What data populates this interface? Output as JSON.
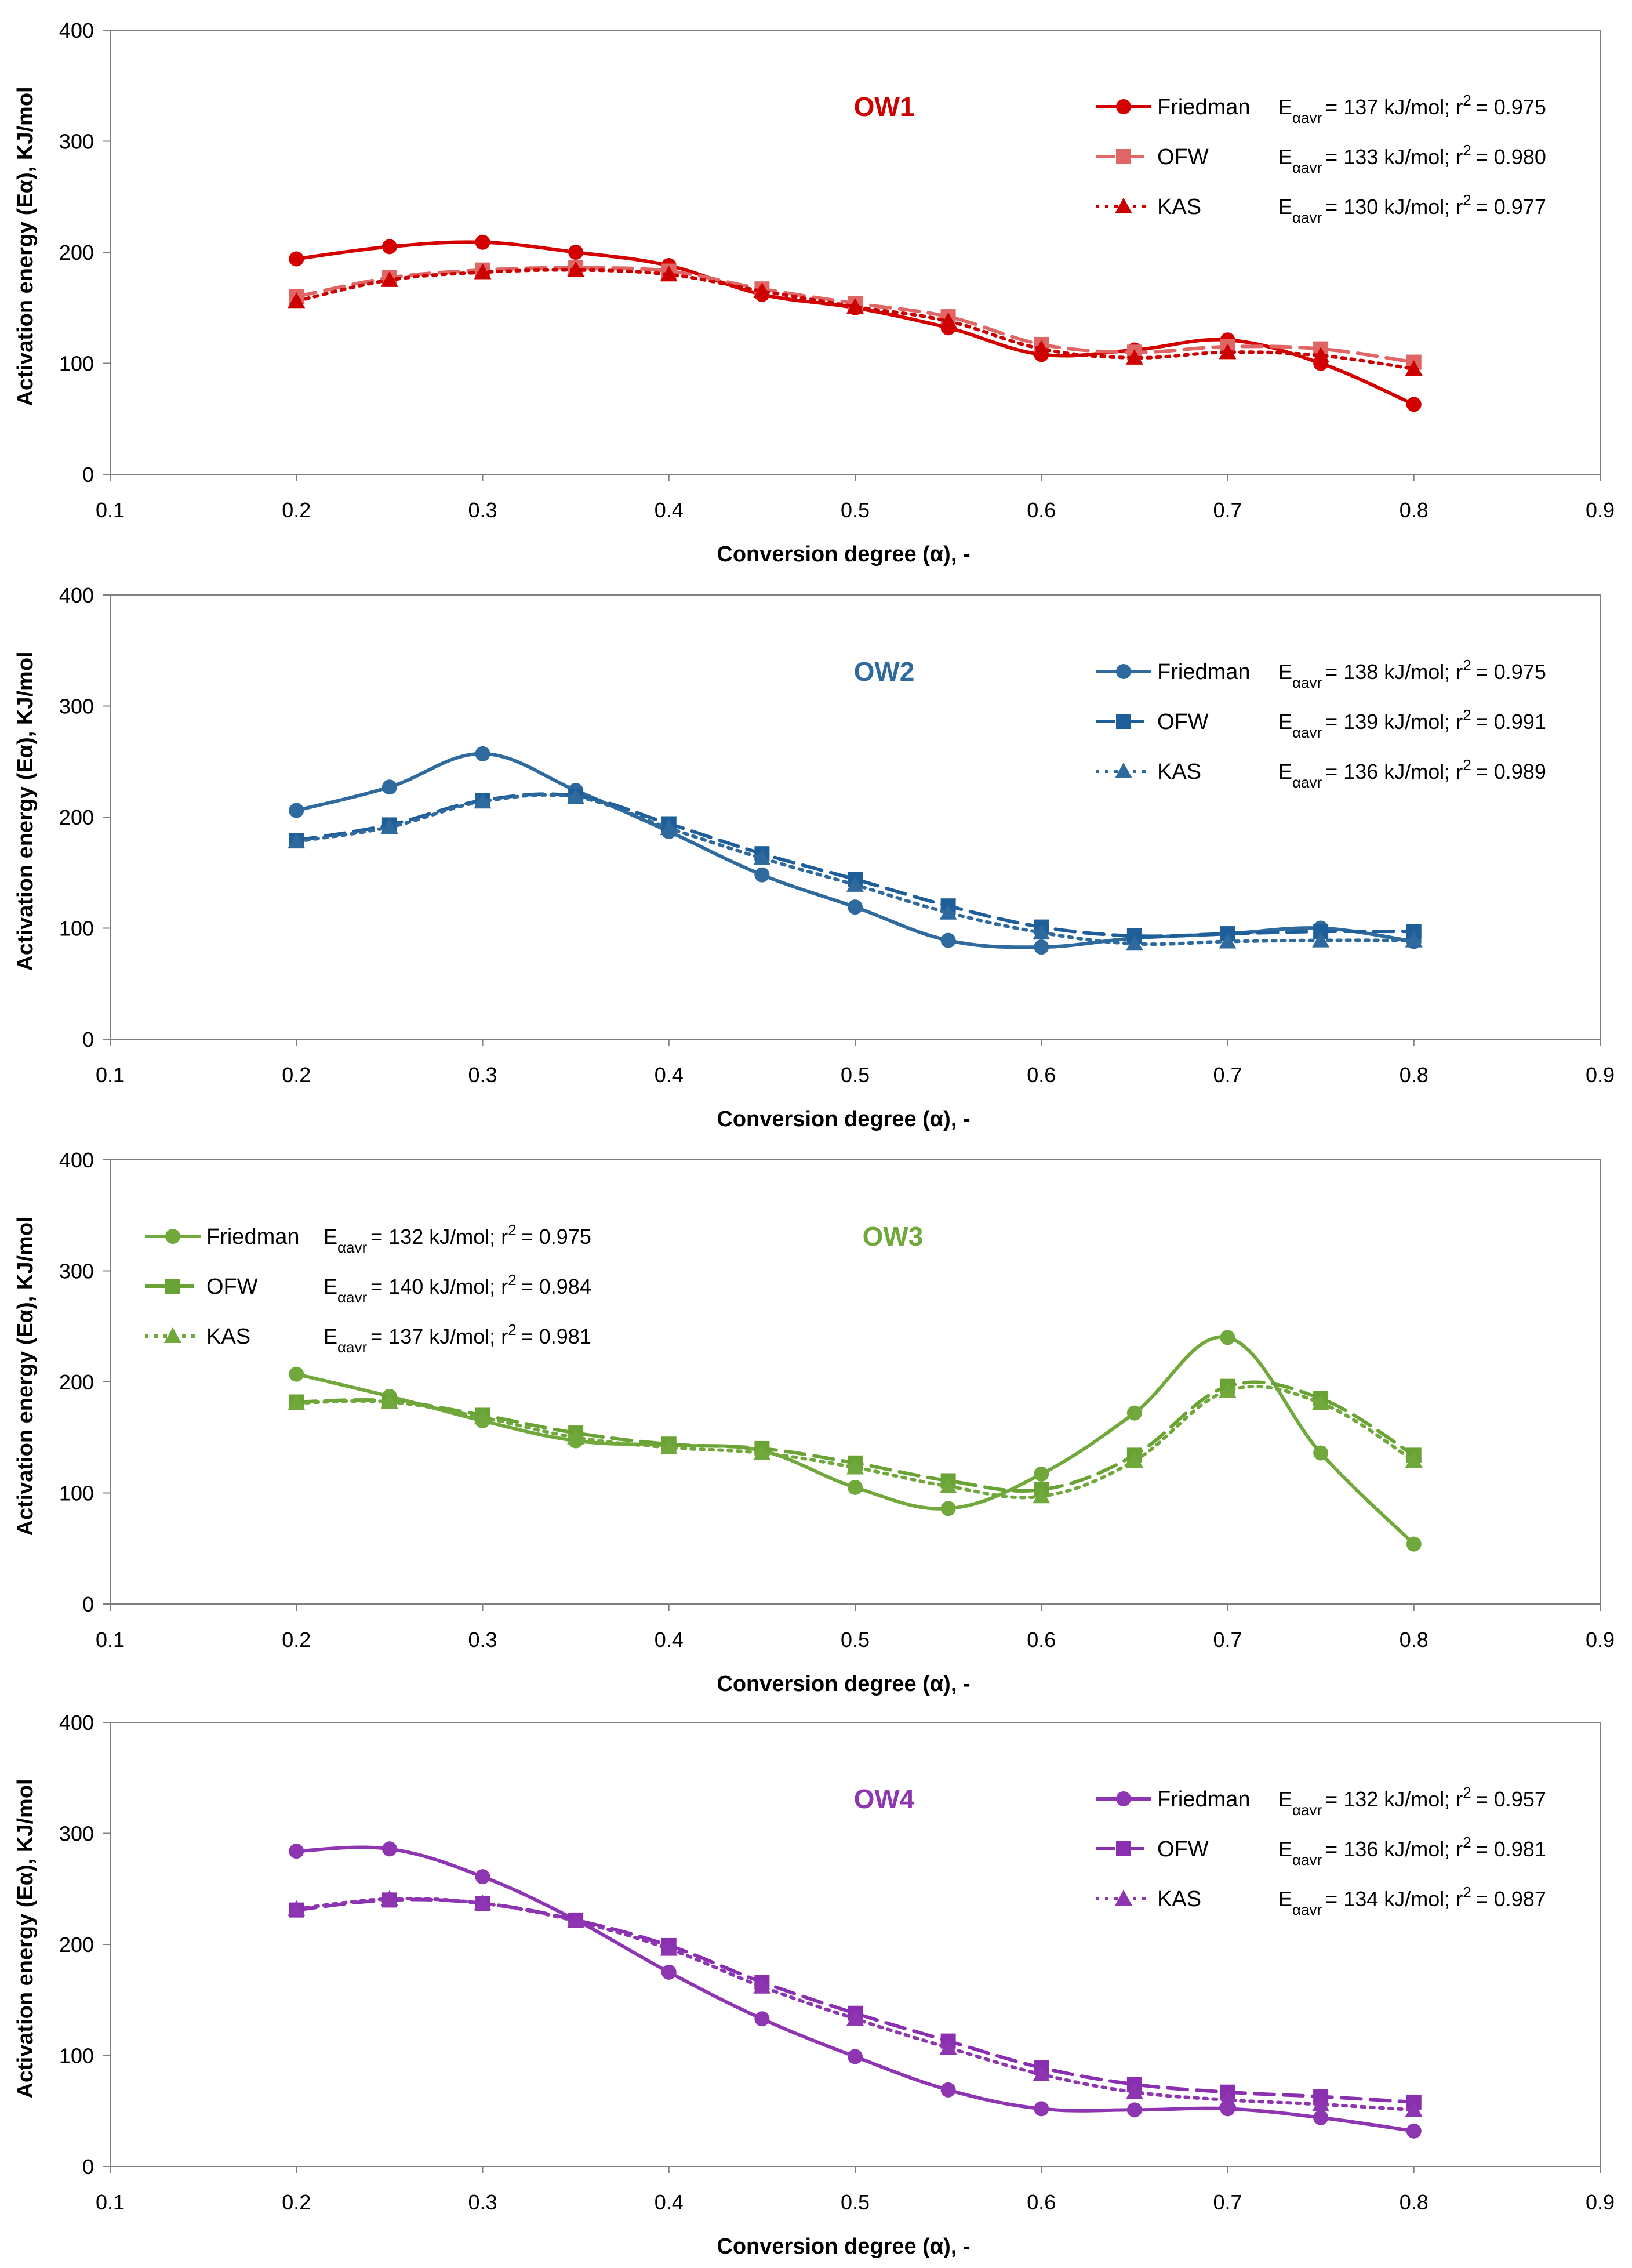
{
  "chart_data": [
    {
      "type": "line",
      "title": "OW1",
      "color": "#cc0000",
      "series_colors": [
        "#d40000",
        "#e06666",
        "#cc0000"
      ],
      "xlabel": "Conversion degree (α), -",
      "ylabel": "Activation energy (Eα), KJ/mol",
      "xlim": [
        0.1,
        0.9
      ],
      "ylim": [
        0,
        400
      ],
      "xticks": [
        "0.1",
        "0.2",
        "0.3",
        "0.4",
        "0.5",
        "0.6",
        "0.7",
        "0.8",
        "0.9"
      ],
      "yticks": [
        "0",
        "100",
        "200",
        "300",
        "400"
      ],
      "grid": false,
      "legend_position": "top-right",
      "x": [
        0.2,
        0.25,
        0.3,
        0.35,
        0.4,
        0.45,
        0.5,
        0.55,
        0.6,
        0.65,
        0.7,
        0.75,
        0.8
      ],
      "series": [
        {
          "name": "Friedman",
          "marker": "circle",
          "line": "solid",
          "stat_prefix": "E",
          "stat_sub": "αavr",
          "stat_rest": "= 137 kJ/mol;  r",
          "stat_sup": "2",
          "stat_end": "= 0.975",
          "values": [
            194,
            205,
            209,
            200,
            188,
            162,
            150,
            132,
            108,
            112,
            121,
            100,
            63
          ]
        },
        {
          "name": "OFW",
          "marker": "square",
          "line": "dashed",
          "stat_prefix": "E",
          "stat_sub": "αavr",
          "stat_rest": "= 133 kJ/mol;  r",
          "stat_sup": "2",
          "stat_end": "= 0.980",
          "values": [
            160,
            177,
            184,
            186,
            183,
            167,
            154,
            142,
            117,
            110,
            115,
            113,
            101
          ]
        },
        {
          "name": "KAS",
          "marker": "triangle",
          "line": "dotted",
          "stat_prefix": "E",
          "stat_sub": "αavr",
          "stat_rest": "= 130 kJ/mol;  r",
          "stat_sup": "2",
          "stat_end": "= 0.977",
          "values": [
            156,
            175,
            182,
            184,
            180,
            165,
            151,
            138,
            113,
            105,
            110,
            107,
            95
          ]
        }
      ]
    },
    {
      "type": "line",
      "title": "OW2",
      "color": "#2e6a9e",
      "series_colors": [
        "#2e6a9e",
        "#1f5f99",
        "#2e6a9e"
      ],
      "xlabel": "Conversion degree (α), -",
      "ylabel": "Activation energy (Eα), KJ/mol",
      "xlim": [
        0.1,
        0.9
      ],
      "ylim": [
        0,
        400
      ],
      "xticks": [
        "0.1",
        "0.2",
        "0.3",
        "0.4",
        "0.5",
        "0.6",
        "0.7",
        "0.8",
        "0.9"
      ],
      "yticks": [
        "0",
        "100",
        "200",
        "300",
        "400"
      ],
      "grid": false,
      "legend_position": "top-right",
      "x": [
        0.2,
        0.25,
        0.3,
        0.35,
        0.4,
        0.45,
        0.5,
        0.55,
        0.6,
        0.65,
        0.7,
        0.75,
        0.8
      ],
      "series": [
        {
          "name": "Friedman",
          "marker": "circle",
          "line": "solid",
          "stat_prefix": "E",
          "stat_sub": "αavr",
          "stat_rest": "= 138 kJ/mol;  r",
          "stat_sup": "2",
          "stat_end": "= 0.975",
          "values": [
            206,
            227,
            257,
            224,
            187,
            148,
            119,
            89,
            83,
            91,
            95,
            100,
            88
          ]
        },
        {
          "name": "OFW",
          "marker": "square",
          "line": "dashed",
          "stat_prefix": "E",
          "stat_sub": "αavr",
          "stat_rest": "= 139 kJ/mol;  r",
          "stat_sup": "2",
          "stat_end": "= 0.991",
          "values": [
            179,
            193,
            215,
            219,
            194,
            167,
            144,
            120,
            101,
            93,
            95,
            97,
            97
          ]
        },
        {
          "name": "KAS",
          "marker": "triangle",
          "line": "dotted",
          "stat_prefix": "E",
          "stat_sub": "αavr",
          "stat_rest": "= 136 kJ/mol;  r",
          "stat_sup": "2",
          "stat_end": "= 0.989",
          "values": [
            178,
            191,
            214,
            218,
            190,
            163,
            139,
            114,
            96,
            86,
            88,
            89,
            89
          ]
        }
      ]
    },
    {
      "type": "line",
      "title": "OW3",
      "color": "#70a83b",
      "series_colors": [
        "#70a83b",
        "#6aa335",
        "#70a83b"
      ],
      "xlabel": "Conversion degree (α), -",
      "ylabel": "Activation energy (Eα), KJ/mol",
      "xlim": [
        0.1,
        0.9
      ],
      "ylim": [
        0,
        400
      ],
      "xticks": [
        "0.1",
        "0.2",
        "0.3",
        "0.4",
        "0.5",
        "0.6",
        "0.7",
        "0.8",
        "0.9"
      ],
      "yticks": [
        "0",
        "100",
        "200",
        "300",
        "400"
      ],
      "grid": false,
      "legend_position": "top-left",
      "x": [
        0.2,
        0.25,
        0.3,
        0.35,
        0.4,
        0.45,
        0.5,
        0.55,
        0.6,
        0.65,
        0.7,
        0.75,
        0.8
      ],
      "series": [
        {
          "name": "Friedman",
          "marker": "circle",
          "line": "solid",
          "stat_prefix": "E",
          "stat_sub": "αavr",
          "stat_rest": "= 132 kJ/mol;  r",
          "stat_sup": "2",
          "stat_end": "= 0.975",
          "values": [
            207,
            187,
            165,
            147,
            143,
            138,
            105,
            86,
            117,
            172,
            240,
            136,
            54
          ]
        },
        {
          "name": "OFW",
          "marker": "square",
          "line": "dashed",
          "stat_prefix": "E",
          "stat_sub": "αavr",
          "stat_rest": "= 140 kJ/mol;  r",
          "stat_sup": "2",
          "stat_end": "= 0.984",
          "values": [
            182,
            183,
            170,
            154,
            144,
            140,
            127,
            111,
            103,
            134,
            196,
            185,
            134
          ]
        },
        {
          "name": "KAS",
          "marker": "triangle",
          "line": "dotted",
          "stat_prefix": "E",
          "stat_sub": "αavr",
          "stat_rest": "= 137 kJ/mol;  r",
          "stat_sup": "2",
          "stat_end": "= 0.981",
          "values": [
            181,
            182,
            168,
            150,
            141,
            136,
            123,
            106,
            97,
            129,
            192,
            181,
            129
          ]
        }
      ]
    },
    {
      "type": "line",
      "title": "OW4",
      "color": "#8e35b1",
      "series_colors": [
        "#8e35b1",
        "#8a2fb0",
        "#8e35b1"
      ],
      "xlabel": "Conversion degree (α), -",
      "ylabel": "Activation energy (Eα), KJ/mol",
      "xlim": [
        0.1,
        0.9
      ],
      "ylim": [
        0,
        400
      ],
      "xticks": [
        "0.1",
        "0.2",
        "0.3",
        "0.4",
        "0.5",
        "0.6",
        "0.7",
        "0.8",
        "0.9"
      ],
      "yticks": [
        "0",
        "100",
        "200",
        "300",
        "400"
      ],
      "grid": false,
      "legend_position": "top-right",
      "x": [
        0.2,
        0.25,
        0.3,
        0.35,
        0.4,
        0.45,
        0.5,
        0.55,
        0.6,
        0.65,
        0.7,
        0.75,
        0.8
      ],
      "series": [
        {
          "name": "Friedman",
          "marker": "circle",
          "line": "solid",
          "stat_prefix": "E",
          "stat_sub": "αavr",
          "stat_rest": "= 132 kJ/mol;  r",
          "stat_sup": "2",
          "stat_end": "= 0.957",
          "values": [
            284,
            286,
            261,
            222,
            175,
            133,
            99,
            69,
            52,
            51,
            52,
            44,
            32
          ]
        },
        {
          "name": "OFW",
          "marker": "square",
          "line": "dashed",
          "stat_prefix": "E",
          "stat_sub": "αavr",
          "stat_rest": "= 136 kJ/mol;  r",
          "stat_sup": "2",
          "stat_end": "= 0.981",
          "values": [
            231,
            240,
            237,
            222,
            199,
            166,
            138,
            113,
            89,
            74,
            67,
            63,
            58
          ]
        },
        {
          "name": "KAS",
          "marker": "triangle",
          "line": "dotted",
          "stat_prefix": "E",
          "stat_sub": "αavr",
          "stat_rest": "= 134 kJ/mol;  r",
          "stat_sup": "2",
          "stat_end": "= 0.987",
          "values": [
            232,
            241,
            237,
            221,
            196,
            162,
            133,
            107,
            83,
            67,
            60,
            56,
            51
          ]
        }
      ]
    }
  ]
}
